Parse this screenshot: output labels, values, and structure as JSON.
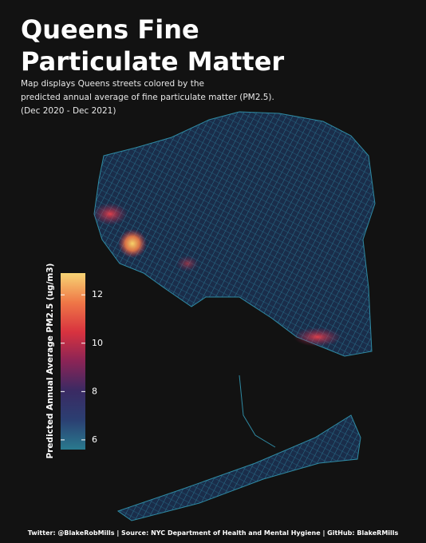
{
  "header": {
    "title_lines": [
      "Queens Fine",
      "Particulate Matter"
    ],
    "subtitle_lines": [
      "Map displays Queens streets colored by the",
      "predicted annual average of fine particulate matter (PM2.5).",
      "(Dec 2020 - Dec 2021)"
    ]
  },
  "colorbar": {
    "label": "Predicted Annual Average PM2.5 (ug/m3)",
    "lim": [
      5.6,
      12.9
    ],
    "ticks": [
      6,
      8,
      10,
      12
    ],
    "colors": [
      "#2a7a8e",
      "#2b3f72",
      "#3a2a63",
      "#8a2456",
      "#d8333f",
      "#ef7747",
      "#f7d474"
    ]
  },
  "footer": "Twitter: @BlakeRobMills | Source: NYC Department of Health and Mental Hygiene | GitHub: BlakeRMills"
}
